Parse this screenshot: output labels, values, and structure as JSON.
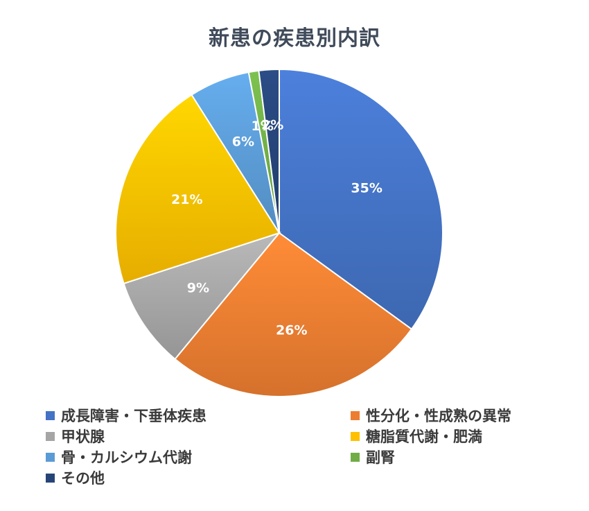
{
  "chart_data": {
    "type": "pie",
    "title": "新患の疾患別内訳",
    "slices": [
      {
        "name": "成長障害・下垂体疾患",
        "value": 35,
        "label": "35%",
        "color": "#4472C4"
      },
      {
        "name": "性分化・性成熟の異常",
        "value": 26,
        "label": "26%",
        "color": "#ED7D31"
      },
      {
        "name": "甲状腺",
        "value": 9,
        "label": "9%",
        "color": "#A5A5A5"
      },
      {
        "name": "糖脂質代謝・肥満",
        "value": 21,
        "label": "21%",
        "color": "#FFC000"
      },
      {
        "name": "骨・カルシウム代謝",
        "value": 6,
        "label": "6%",
        "color": "#5B9BD5"
      },
      {
        "name": "副腎",
        "value": 1,
        "label": "1%",
        "color": "#70AD47"
      },
      {
        "name": "その他",
        "value": 2,
        "label": "2%",
        "color": "#264478"
      }
    ],
    "legend_position": "bottom"
  }
}
